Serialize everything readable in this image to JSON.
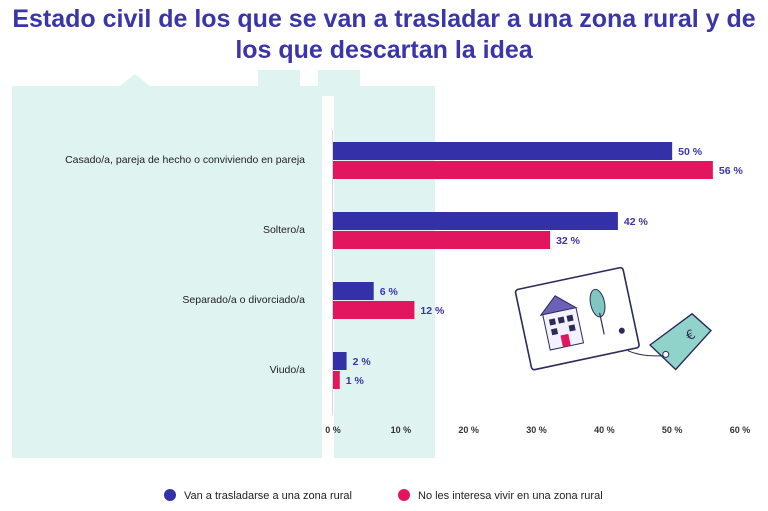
{
  "title": "Estado civil de los que se van a trasladar a una zona rural y de los que descartan la idea",
  "colors": {
    "series1": "#3431a8",
    "series2": "#e2165e",
    "background_house": "#dff3f1",
    "title": "#3a35a8"
  },
  "chart_data": {
    "type": "bar",
    "orientation": "horizontal",
    "title": "Estado civil de los que se van a trasladar a una zona rural y de los que descartan la idea",
    "categories": [
      "Casado/a, pareja de hecho o conviviendo en pareja",
      "Soltero/a",
      "Separado/a o divorciado/a",
      "Viudo/a"
    ],
    "series": [
      {
        "name": "Van a trasladarse a una zona rural",
        "values": [
          50,
          42,
          6,
          2
        ],
        "labels": [
          "50 %",
          "42 %",
          "6 %",
          "2 %"
        ]
      },
      {
        "name": "No les interesa vivir en una zona rural",
        "values": [
          56,
          32,
          12,
          1
        ],
        "labels": [
          "56 %",
          "32 %",
          "12 %",
          "1 %"
        ]
      }
    ],
    "xlim": [
      0,
      60
    ],
    "xticks": [
      0,
      10,
      20,
      30,
      40,
      50,
      60
    ],
    "xtick_labels": [
      "0 %",
      "10 %",
      "20 %",
      "30 %",
      "40 %",
      "50 %",
      "60 %"
    ],
    "legend_position": "bottom"
  }
}
